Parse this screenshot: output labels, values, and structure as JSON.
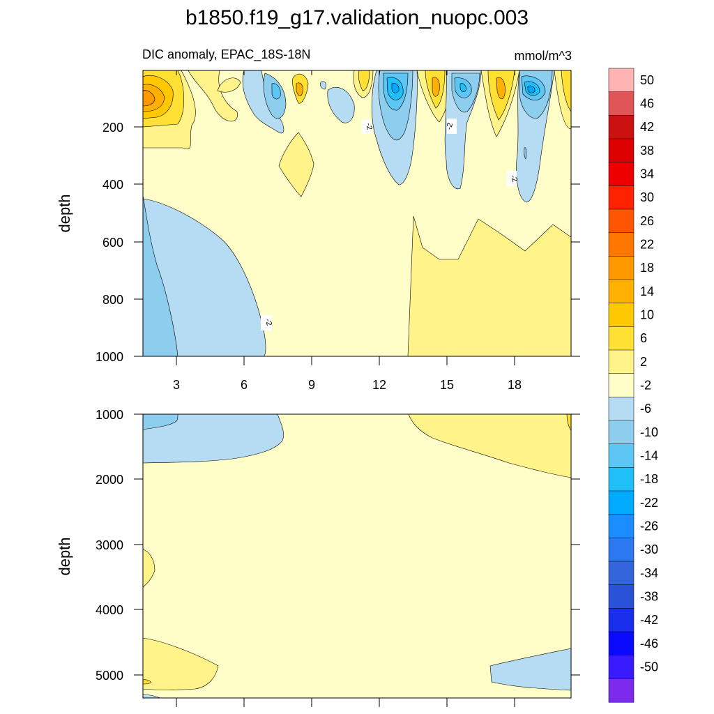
{
  "title": "b1850.f19_g17.validation_nuopc.003",
  "subtitle_left": "DIC anomaly, EPAC_18S-18N",
  "subtitle_right": "mmol/m^3",
  "chart_data": [
    {
      "type": "heatmap",
      "panel": "upper",
      "title": "DIC anomaly, EPAC_18S-18N",
      "units": "mmol/m^3",
      "xlabel": "",
      "ylabel": "depth",
      "xlim": [
        1,
        20.8
      ],
      "ylim": [
        1000,
        0
      ],
      "xticks": [
        "3",
        "6",
        "9",
        "12",
        "15",
        "18"
      ],
      "yticks": [
        "200",
        "400",
        "600",
        "800",
        "1000"
      ],
      "contour_labels": [
        "-2",
        "-2",
        "-2",
        "-2"
      ],
      "description": "Depth–time section of DIC anomaly; mostly -2 to 2, negative cores (-6 to -18) near 50-200 m around months 8, 12.5, 15.5 and 18.5, positive cores (up to ~18) near surface at month 1."
    },
    {
      "type": "heatmap",
      "panel": "lower",
      "xlabel": "",
      "ylabel": "depth",
      "xlim": [
        1,
        20.8
      ],
      "ylim": [
        5350,
        1000
      ],
      "yticks": [
        "1000",
        "2000",
        "3000",
        "4000",
        "5000"
      ],
      "description": "Deep section; predominantly -2 to 2, with -6 to -2 near 1000-1800 m early and 2 to 6 near 1000-2000 m after month 13."
    }
  ],
  "colorbar": {
    "labels": [
      "50",
      "46",
      "42",
      "38",
      "34",
      "30",
      "26",
      "22",
      "18",
      "14",
      "10",
      "6",
      "2",
      "-2",
      "-6",
      "-10",
      "-14",
      "-18",
      "-22",
      "-26",
      "-30",
      "-34",
      "-38",
      "-42",
      "-46",
      "-50"
    ],
    "colors": [
      "#ffb3b3",
      "#e05555",
      "#cc1111",
      "#dd0000",
      "#ee0000",
      "#ff2200",
      "#ff5500",
      "#ff7700",
      "#ff9900",
      "#ffb000",
      "#ffc800",
      "#ffe033",
      "#fff38a",
      "#fffdc8",
      "#b5dcf2",
      "#8dcdee",
      "#5ec6f5",
      "#20bff8",
      "#00aaff",
      "#1a8eff",
      "#2b78f0",
      "#3366dd",
      "#2a52d8",
      "#1a2eee",
      "#0a0aff",
      "#3a1aff",
      "#7b2aee"
    ]
  }
}
